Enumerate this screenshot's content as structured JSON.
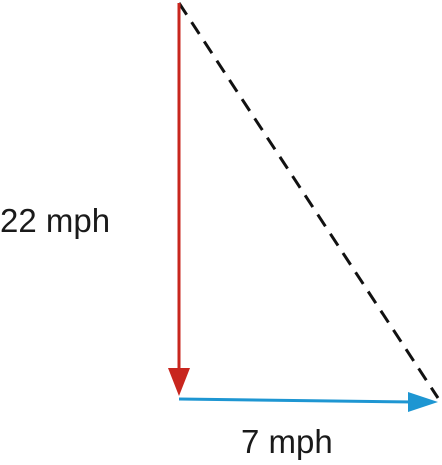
{
  "vectors": {
    "vertical": {
      "label": "22 mph",
      "color": "#c8261e"
    },
    "horizontal": {
      "label": "7 mph",
      "color": "#1e96d2"
    },
    "resultant": {
      "color": "#111111",
      "style": "dashed"
    }
  }
}
